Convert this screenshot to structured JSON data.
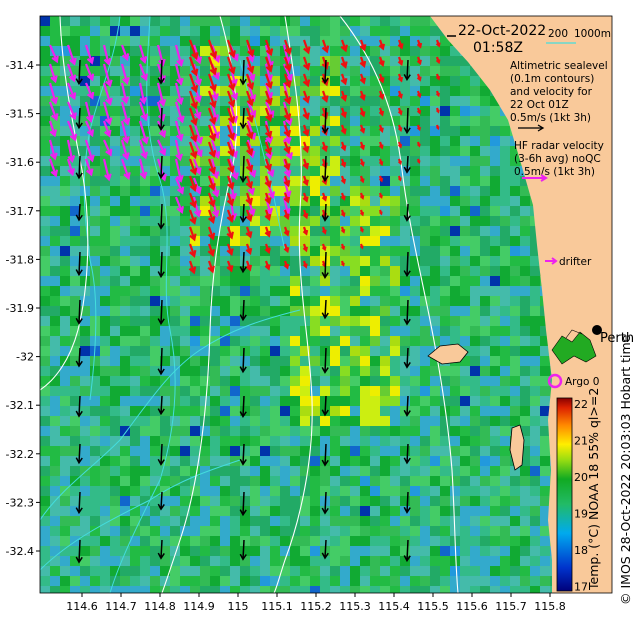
{
  "map": {
    "date": "22-Oct-2022",
    "time": "01:58Z",
    "scale_label": "200",
    "scale_depth": "1000m",
    "legend_altimetry": [
      "Altimetric sealevel",
      "(0.1m contours)",
      "and velocity for",
      "22 Oct 01Z",
      "0.5m/s (1kt 3h)"
    ],
    "legend_radar": [
      "HF radar velocity",
      "(3-6h avg) noQC",
      "0.5m/s (1kt 3h)"
    ],
    "drifter_label": "drifter",
    "argo_label": "Argo 0",
    "place_label": "Perth",
    "credit": "© IMOS 28-Oct-2022 20:03:03 Hobart time",
    "colorbar_label": "Temp. (°C) NOAA 18 55% ql>=2",
    "colorbar_ticks": [
      "22",
      "21",
      "20",
      "19",
      "18",
      "17"
    ],
    "x_ticks": [
      "114.6",
      "114.7",
      "114.8",
      "114.9",
      "115",
      "115.1",
      "115.2",
      "115.3",
      "115.4",
      "115.5",
      "115.6",
      "115.7",
      "115.8"
    ],
    "y_ticks": [
      "-31.4",
      "-31.5",
      "-31.6",
      "-31.7",
      "-31.8",
      "-31.9",
      "-32",
      "-32.1",
      "-32.2",
      "-32.3",
      "-32.4"
    ],
    "colors": {
      "land": "#f9c99a",
      "radar_arrow": "#ee22ee",
      "alt_arrow_in": "#ee1111",
      "alt_arrow_out": "#000000",
      "bathy_contour": "#44dddd",
      "sealevel_contour": "#ffffff"
    }
  }
}
